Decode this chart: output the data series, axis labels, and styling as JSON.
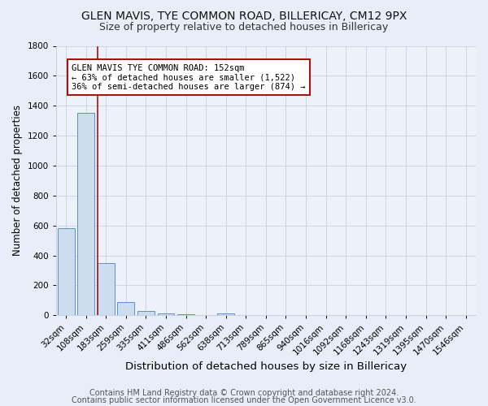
{
  "title1": "GLEN MAVIS, TYE COMMON ROAD, BILLERICAY, CM12 9PX",
  "title2": "Size of property relative to detached houses in Billericay",
  "xlabel": "Distribution of detached houses by size in Billericay",
  "ylabel": "Number of detached properties",
  "footer1": "Contains HM Land Registry data © Crown copyright and database right 2024.",
  "footer2": "Contains public sector information licensed under the Open Government Licence v3.0.",
  "bar_labels": [
    "32sqm",
    "108sqm",
    "183sqm",
    "259sqm",
    "335sqm",
    "411sqm",
    "486sqm",
    "562sqm",
    "638sqm",
    "713sqm",
    "789sqm",
    "865sqm",
    "940sqm",
    "1016sqm",
    "1092sqm",
    "1168sqm",
    "1243sqm",
    "1319sqm",
    "1395sqm",
    "1470sqm",
    "1546sqm"
  ],
  "bar_values": [
    580,
    1350,
    350,
    90,
    28,
    15,
    7,
    0,
    12,
    0,
    0,
    0,
    0,
    0,
    0,
    0,
    0,
    0,
    0,
    0,
    0
  ],
  "bar_color": "#ccddf0",
  "bar_edge_color": "#5b8fc9",
  "property_line_color": "#aa1111",
  "annotation_text": "GLEN MAVIS TYE COMMON ROAD: 152sqm\n← 63% of detached houses are smaller (1,522)\n36% of semi-detached houses are larger (874) →",
  "annotation_box_color": "white",
  "annotation_box_edge": "#aa1111",
  "ylim": [
    0,
    1800
  ],
  "yticks": [
    0,
    200,
    400,
    600,
    800,
    1000,
    1200,
    1400,
    1600,
    1800
  ],
  "bg_color": "#e8eef8",
  "plot_bg_color": "#edf2fa",
  "grid_color": "#c8d0de",
  "title1_fontsize": 10,
  "title2_fontsize": 9,
  "xlabel_fontsize": 9.5,
  "ylabel_fontsize": 8.5,
  "tick_fontsize": 7.5,
  "footer_fontsize": 7,
  "annot_fontsize": 7.5
}
